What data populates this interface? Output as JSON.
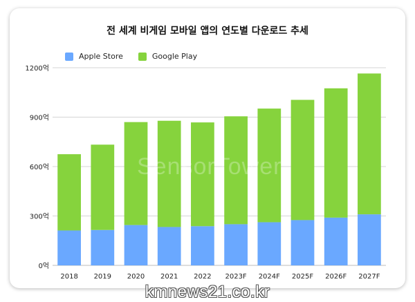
{
  "chart_data": {
    "type": "bar",
    "stacked": true,
    "title": "전 세계 비게임 모바일 앱의 연도별 다운로드 추세",
    "categories": [
      "2018",
      "2019",
      "2020",
      "2021",
      "2022",
      "2023F",
      "2024F",
      "2025F",
      "2026F",
      "2027F"
    ],
    "series": [
      {
        "name": "Apple Store",
        "color": "#6aa8ff",
        "values": [
          212,
          215,
          245,
          233,
          238,
          250,
          262,
          275,
          290,
          310
        ]
      },
      {
        "name": "Google Play",
        "color": "#86d33d",
        "values": [
          463,
          518,
          625,
          645,
          630,
          655,
          690,
          730,
          785,
          855
        ]
      }
    ],
    "ylim": [
      0,
      1200
    ],
    "yticks": [
      0,
      300,
      600,
      900,
      1200
    ],
    "ytick_labels": [
      "0억",
      "300억",
      "600억",
      "900억",
      "1200억"
    ],
    "grid": true,
    "legend_position": "top-left"
  },
  "legend": {
    "apple_label": "Apple Store",
    "google_label": "Google Play"
  },
  "watermark": {
    "site": "kmnews21.co.kr",
    "logo": "SensorTower"
  }
}
